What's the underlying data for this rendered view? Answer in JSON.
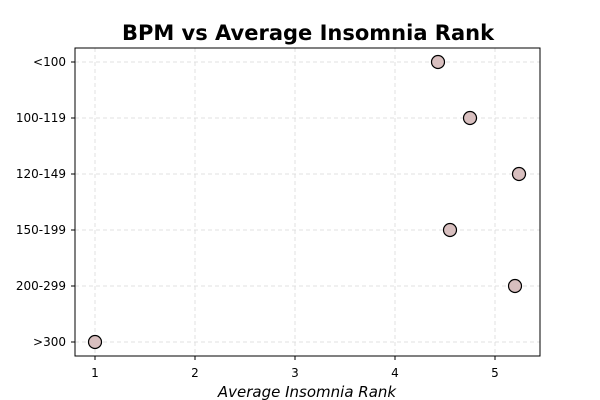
{
  "chart_data": {
    "type": "scatter",
    "title": "BPM vs Average Insomnia Rank",
    "xlabel": "Average Insomnia Rank",
    "ylabel": "",
    "xlim": [
      0.8,
      5.45
    ],
    "x_ticks": [
      1,
      2,
      3,
      4,
      5
    ],
    "categories": [
      "<100",
      "100-119",
      "120-149",
      "150-199",
      "200-299",
      ">300"
    ],
    "points": [
      {
        "category": "<100",
        "x": 4.43
      },
      {
        "category": "100-119",
        "x": 4.75
      },
      {
        "category": "120-149",
        "x": 5.24
      },
      {
        "category": "150-199",
        "x": 4.55
      },
      {
        "category": "200-299",
        "x": 5.2
      },
      {
        "category": ">300",
        "x": 1.0
      }
    ],
    "grid": true,
    "marker_color": "#d8bfbf",
    "marker_edge_color": "#000000"
  }
}
